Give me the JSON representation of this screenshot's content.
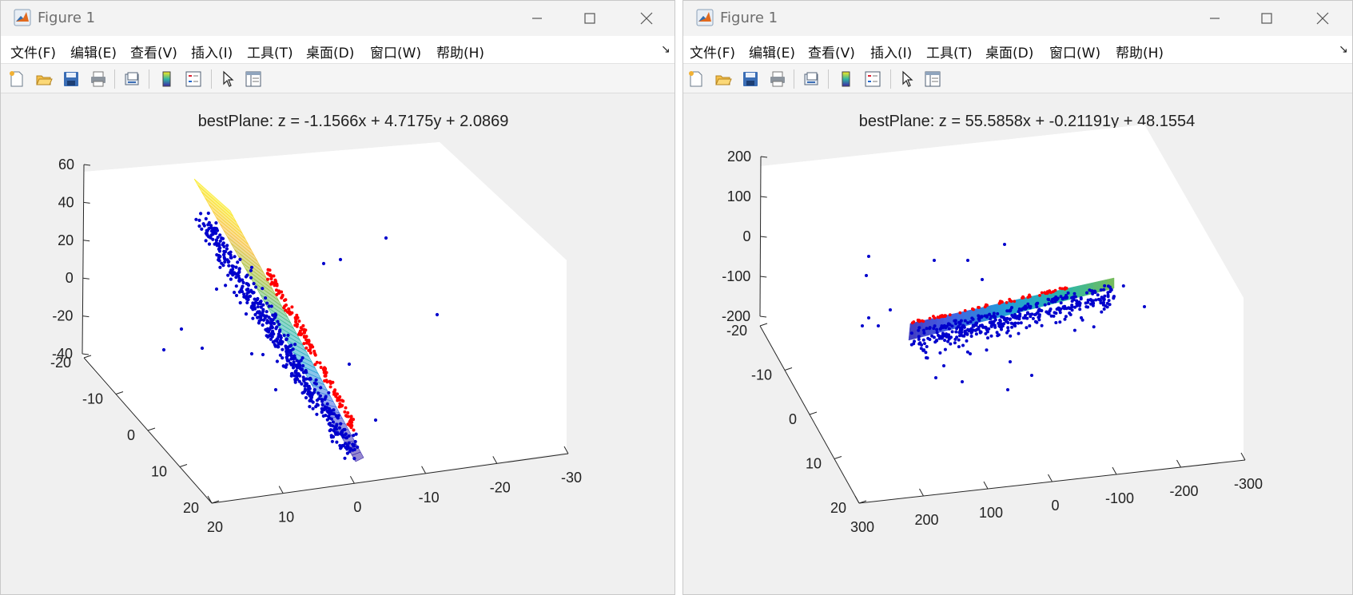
{
  "windows": [
    {
      "title": "Figure 1",
      "menu": [
        "文件(F)",
        "编辑(E)",
        "查看(V)",
        "插入(I)",
        "工具(T)",
        "桌面(D)",
        "窗口(W)",
        "帮助(H)"
      ],
      "toolbar_icons": [
        "new-figure-icon",
        "open-file-icon",
        "save-icon",
        "print-icon",
        "link-plot-icon",
        "colorbar-icon",
        "legend-icon",
        "edit-plot-cursor-icon",
        "property-inspector-icon"
      ],
      "chart_data": {
        "type": "scatter",
        "title": "bestPlane:  z =  -1.1566x + 4.7175y + 2.0869",
        "z_ticks": [
          "60",
          "40",
          "20",
          "0",
          "-20",
          "-40"
        ],
        "y_ticks": [
          "-20",
          "-10",
          "0",
          "10",
          "20"
        ],
        "x_ticks": [
          "20",
          "10",
          "0",
          "-10",
          "-20",
          "-30"
        ],
        "series": [
          {
            "kind": "surface",
            "colormap": "parula"
          },
          {
            "kind": "points",
            "color": "#0000cc"
          },
          {
            "kind": "points",
            "color": "#ff0000"
          }
        ]
      }
    },
    {
      "title": "Figure 1",
      "menu": [
        "文件(F)",
        "编辑(E)",
        "查看(V)",
        "插入(I)",
        "工具(T)",
        "桌面(D)",
        "窗口(W)",
        "帮助(H)"
      ],
      "toolbar_icons": [
        "new-figure-icon",
        "open-file-icon",
        "save-icon",
        "print-icon",
        "link-plot-icon",
        "colorbar-icon",
        "legend-icon",
        "edit-plot-cursor-icon",
        "property-inspector-icon"
      ],
      "chart_data": {
        "type": "scatter",
        "title": "bestPlane:  z =  55.5858x + -0.21191y + 48.1554",
        "z_ticks": [
          "200",
          "100",
          "0",
          "-100",
          "-200"
        ],
        "y_ticks": [
          "-20",
          "-10",
          "0",
          "10",
          "20"
        ],
        "x_ticks": [
          "300",
          "200",
          "100",
          "0",
          "-100",
          "-200",
          "-300"
        ],
        "series": [
          {
            "kind": "surface",
            "colormap": "parula"
          },
          {
            "kind": "points",
            "color": "#0000cc"
          },
          {
            "kind": "points",
            "color": "#ff0000"
          }
        ]
      }
    }
  ]
}
